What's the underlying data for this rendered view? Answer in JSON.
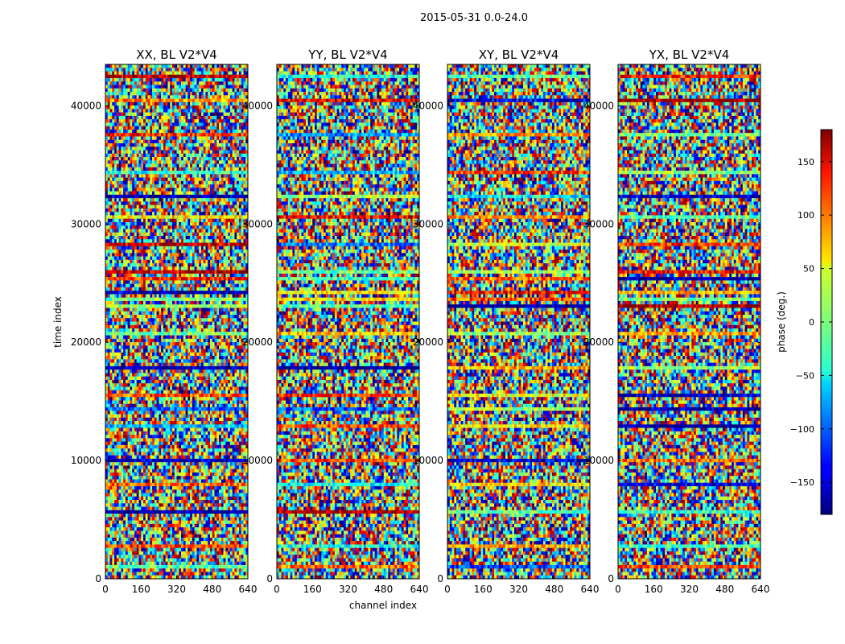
{
  "figure": {
    "suptitle": "2015-05-31 0.0-24.0"
  },
  "chart_data": {
    "type": "heatmap",
    "panels": [
      {
        "title": "XX, BL V2*V4"
      },
      {
        "title": "YY, BL V2*V4"
      },
      {
        "title": "XY, BL V2*V4"
      },
      {
        "title": "YX, BL V2*V4"
      }
    ],
    "xlabel": "channel index",
    "ylabel": "time index",
    "x_ticks": [
      0,
      160,
      320,
      480,
      640
    ],
    "y_ticks": [
      0,
      10000,
      20000,
      30000,
      40000
    ],
    "xlim": [
      0,
      640
    ],
    "ylim": [
      0,
      43500
    ],
    "colorbar": {
      "label": "phase (deg.)",
      "ticks": [
        -150,
        -100,
        -50,
        0,
        50,
        100,
        150
      ],
      "tick_labels": [
        "−150",
        "−100",
        "−50",
        "0",
        "50",
        "100",
        "150"
      ],
      "range": [
        -180,
        180
      ],
      "colormap": "jet"
    }
  }
}
